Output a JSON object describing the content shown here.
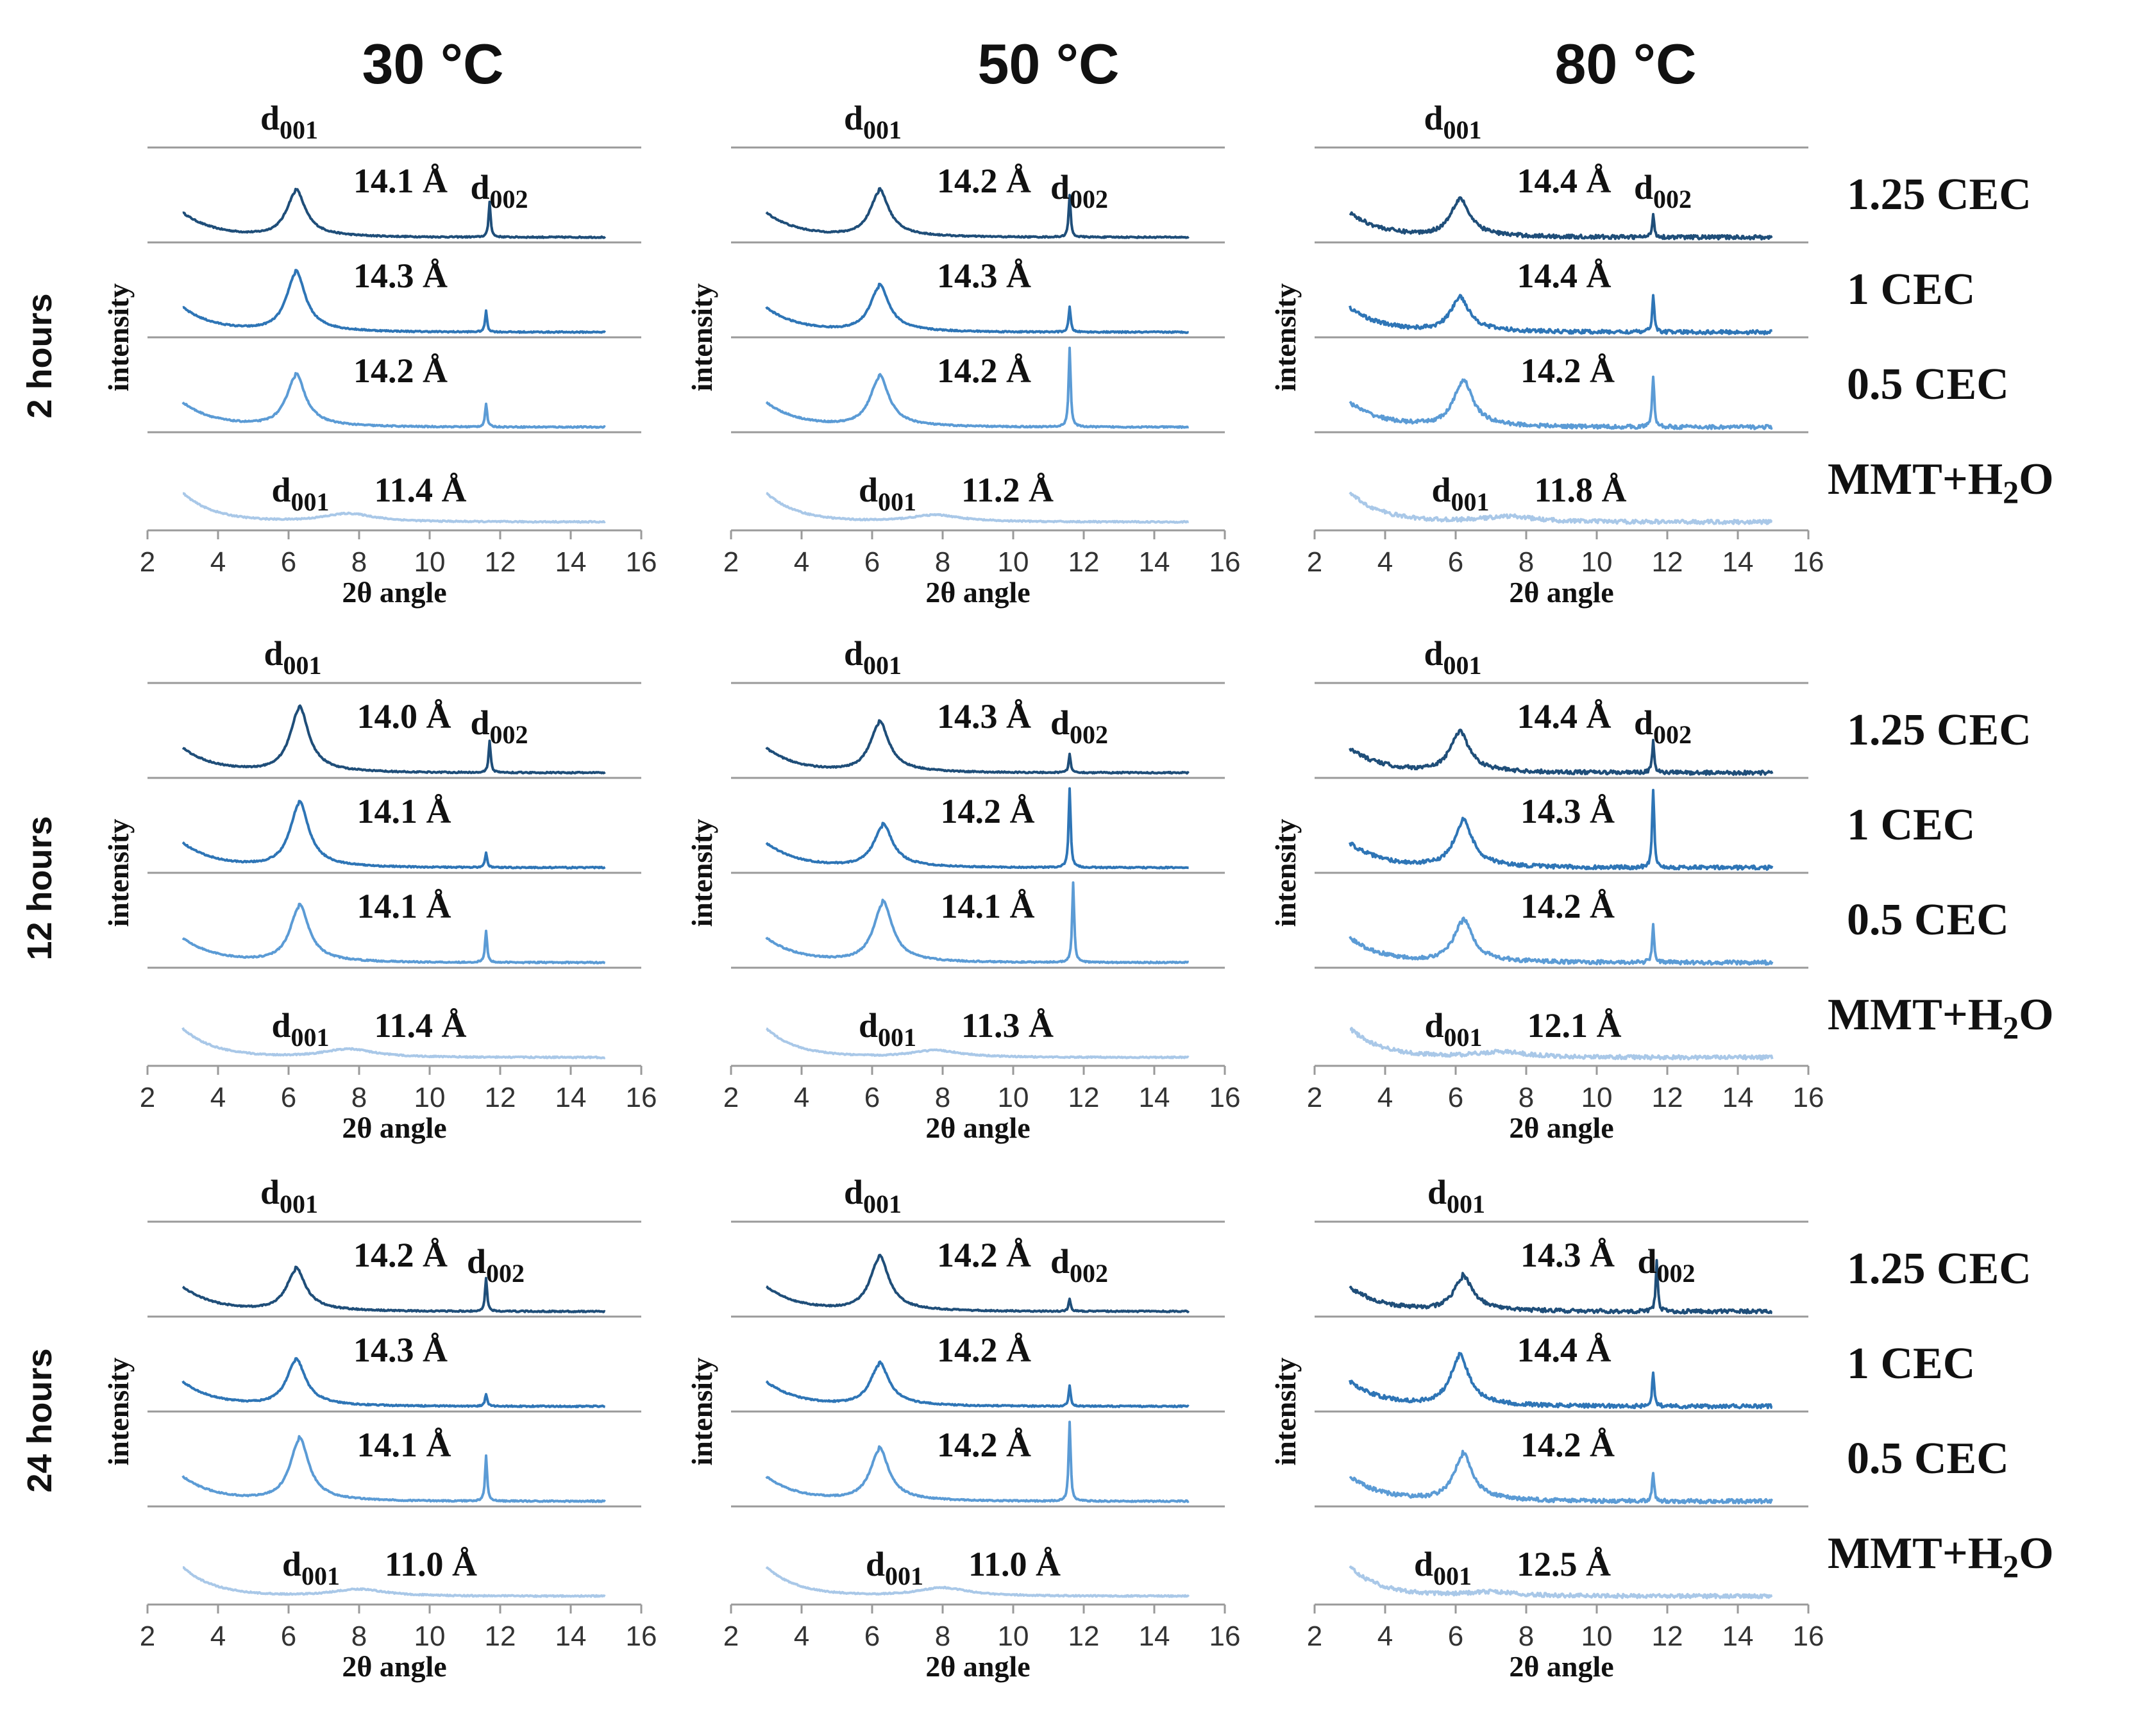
{
  "figure": {
    "temperatures": [
      "30 °C",
      "50 °C",
      "80 °C"
    ],
    "times": [
      "2 hours",
      "12 hours",
      "24 hours"
    ],
    "condition_labels": [
      {
        "main": "1.25 CEC",
        "sub": ""
      },
      {
        "main": "1 CEC",
        "sub": ""
      },
      {
        "main": "0.5 CEC",
        "sub": ""
      },
      {
        "main": "MMT+H",
        "sub": "2",
        "tail": "O"
      }
    ],
    "y_label": "intensity",
    "x_label": "2θ angle",
    "x_ticks": [
      "2",
      "4",
      "6",
      "8",
      "10",
      "12",
      "14",
      "16"
    ],
    "peak_labels": {
      "d001": {
        "main": "d",
        "sub": "001"
      },
      "d002": {
        "main": "d",
        "sub": "002"
      }
    },
    "colors": {
      "1.25 CEC": "#1f4e79",
      "1 CEC": "#2e75b6",
      "0.5 CEC": "#5b9bd5",
      "MMT+H2O": "#a9c8e8",
      "baseline": "#9a9a9a"
    }
  },
  "chart_data": [
    {
      "type": "line",
      "time": "2 hours",
      "temperature": "30 °C",
      "xlabel": "2θ angle",
      "ylabel": "intensity",
      "xlim": [
        2,
        16
      ],
      "series": [
        {
          "name": "1.25 CEC",
          "d001_peak_2theta": 6.2,
          "d_spacing": "14.1 Å",
          "peak_height": 0.55,
          "d002_peak_2theta": 11.7,
          "d002_height": 0.42
        },
        {
          "name": "1 CEC",
          "d001_peak_2theta": 6.2,
          "d_spacing": "14.3 Å",
          "peak_height": 0.72,
          "d002_peak_2theta": 11.6,
          "d002_height": 0.25
        },
        {
          "name": "0.5 CEC",
          "d001_peak_2theta": 6.2,
          "d_spacing": "14.2 Å",
          "peak_height": 0.62,
          "d002_peak_2theta": 11.6,
          "d002_height": 0.28
        },
        {
          "name": "MMT+H2O",
          "d001_peak_2theta": 7.7,
          "d_spacing": "11.4 Å",
          "peak_height": 0.12
        }
      ]
    },
    {
      "type": "line",
      "time": "2 hours",
      "temperature": "50 °C",
      "xlabel": "2θ angle",
      "ylabel": "intensity",
      "xlim": [
        2,
        16
      ],
      "series": [
        {
          "name": "1.25 CEC",
          "d001_peak_2theta": 6.2,
          "d_spacing": "14.2 Å",
          "peak_height": 0.55,
          "d002_peak_2theta": 11.6,
          "d002_height": 0.5
        },
        {
          "name": "1 CEC",
          "d001_peak_2theta": 6.2,
          "d_spacing": "14.3 Å",
          "peak_height": 0.55,
          "d002_peak_2theta": 11.6,
          "d002_height": 0.3
        },
        {
          "name": "0.5 CEC",
          "d001_peak_2theta": 6.2,
          "d_spacing": "14.2 Å",
          "peak_height": 0.6,
          "d002_peak_2theta": 11.6,
          "d002_height": 0.95
        },
        {
          "name": "MMT+H2O",
          "d001_peak_2theta": 7.8,
          "d_spacing": "11.2 Å",
          "peak_height": 0.1
        }
      ]
    },
    {
      "type": "line",
      "time": "2 hours",
      "temperature": "80 °C",
      "xlabel": "2θ angle",
      "ylabel": "intensity",
      "xlim": [
        2,
        16
      ],
      "series": [
        {
          "name": "1.25 CEC",
          "d001_peak_2theta": 6.1,
          "d_spacing": "14.4 Å",
          "peak_height": 0.45,
          "d002_peak_2theta": 11.6,
          "d002_height": 0.27
        },
        {
          "name": "1 CEC",
          "d001_peak_2theta": 6.1,
          "d_spacing": "14.4 Å",
          "peak_height": 0.4,
          "d002_peak_2theta": 11.6,
          "d002_height": 0.45
        },
        {
          "name": "0.5 CEC",
          "d001_peak_2theta": 6.2,
          "d_spacing": "14.2 Å",
          "peak_height": 0.55,
          "d002_peak_2theta": 11.6,
          "d002_height": 0.62
        },
        {
          "name": "MMT+H2O",
          "d001_peak_2theta": 7.5,
          "d_spacing": "11.8 Å",
          "peak_height": 0.08
        }
      ]
    },
    {
      "type": "line",
      "time": "12 hours",
      "temperature": "30 °C",
      "xlabel": "2θ angle",
      "ylabel": "intensity",
      "xlim": [
        2,
        16
      ],
      "series": [
        {
          "name": "1.25 CEC",
          "d001_peak_2theta": 6.3,
          "d_spacing": "14.0 Å",
          "peak_height": 0.78,
          "d002_peak_2theta": 11.7,
          "d002_height": 0.38
        },
        {
          "name": "1 CEC",
          "d001_peak_2theta": 6.3,
          "d_spacing": "14.1 Å",
          "peak_height": 0.78,
          "d002_peak_2theta": 11.6,
          "d002_height": 0.18
        },
        {
          "name": "0.5 CEC",
          "d001_peak_2theta": 6.3,
          "d_spacing": "14.1 Å",
          "peak_height": 0.68,
          "d002_peak_2theta": 11.6,
          "d002_height": 0.38
        },
        {
          "name": "MMT+H2O",
          "d001_peak_2theta": 7.7,
          "d_spacing": "11.4 Å",
          "peak_height": 0.12
        }
      ]
    },
    {
      "type": "line",
      "time": "12 hours",
      "temperature": "50 °C",
      "xlabel": "2θ angle",
      "ylabel": "intensity",
      "xlim": [
        2,
        16
      ],
      "series": [
        {
          "name": "1.25 CEC",
          "d001_peak_2theta": 6.2,
          "d_spacing": "14.3 Å",
          "peak_height": 0.6,
          "d002_peak_2theta": 11.6,
          "d002_height": 0.22
        },
        {
          "name": "1 CEC",
          "d001_peak_2theta": 6.3,
          "d_spacing": "14.2 Å",
          "peak_height": 0.5,
          "d002_peak_2theta": 11.6,
          "d002_height": 0.95
        },
        {
          "name": "0.5 CEC",
          "d001_peak_2theta": 6.3,
          "d_spacing": "14.1 Å",
          "peak_height": 0.72,
          "d002_peak_2theta": 11.7,
          "d002_height": 0.95
        },
        {
          "name": "MMT+H2O",
          "d001_peak_2theta": 7.8,
          "d_spacing": "11.3 Å",
          "peak_height": 0.1
        }
      ]
    },
    {
      "type": "line",
      "time": "12 hours",
      "temperature": "80 °C",
      "xlabel": "2θ angle",
      "ylabel": "intensity",
      "xlim": [
        2,
        16
      ],
      "series": [
        {
          "name": "1.25 CEC",
          "d001_peak_2theta": 6.1,
          "d_spacing": "14.4 Å",
          "peak_height": 0.48,
          "d002_peak_2theta": 11.6,
          "d002_height": 0.38
        },
        {
          "name": "1 CEC",
          "d001_peak_2theta": 6.2,
          "d_spacing": "14.3 Å",
          "peak_height": 0.55,
          "d002_peak_2theta": 11.6,
          "d002_height": 0.95
        },
        {
          "name": "0.5 CEC",
          "d001_peak_2theta": 6.2,
          "d_spacing": "14.2 Å",
          "peak_height": 0.5,
          "d002_peak_2theta": 11.6,
          "d002_height": 0.45
        },
        {
          "name": "MMT+H2O",
          "d001_peak_2theta": 7.3,
          "d_spacing": "12.1 Å",
          "peak_height": 0.08
        }
      ]
    },
    {
      "type": "line",
      "time": "24 hours",
      "temperature": "30 °C",
      "xlabel": "2θ angle",
      "ylabel": "intensity",
      "xlim": [
        2,
        16
      ],
      "series": [
        {
          "name": "1.25 CEC",
          "d001_peak_2theta": 6.2,
          "d_spacing": "14.2 Å",
          "peak_height": 0.5,
          "d002_peak_2theta": 11.6,
          "d002_height": 0.4
        },
        {
          "name": "1 CEC",
          "d001_peak_2theta": 6.2,
          "d_spacing": "14.3 Å",
          "peak_height": 0.55,
          "d002_peak_2theta": 11.6,
          "d002_height": 0.15
        },
        {
          "name": "0.5 CEC",
          "d001_peak_2theta": 6.3,
          "d_spacing": "14.1 Å",
          "peak_height": 0.75,
          "d002_peak_2theta": 11.6,
          "d002_height": 0.55
        },
        {
          "name": "MMT+H2O",
          "d001_peak_2theta": 8.0,
          "d_spacing": "11.0 Å",
          "peak_height": 0.1
        }
      ]
    },
    {
      "type": "line",
      "time": "24 hours",
      "temperature": "50 °C",
      "xlabel": "2θ angle",
      "ylabel": "intensity",
      "xlim": [
        2,
        16
      ],
      "series": [
        {
          "name": "1.25 CEC",
          "d001_peak_2theta": 6.2,
          "d_spacing": "14.2 Å",
          "peak_height": 0.65,
          "d002_peak_2theta": 11.6,
          "d002_height": 0.15
        },
        {
          "name": "1 CEC",
          "d001_peak_2theta": 6.2,
          "d_spacing": "14.2 Å",
          "peak_height": 0.5,
          "d002_peak_2theta": 11.6,
          "d002_height": 0.25
        },
        {
          "name": "0.5 CEC",
          "d001_peak_2theta": 6.2,
          "d_spacing": "14.2 Å",
          "peak_height": 0.62,
          "d002_peak_2theta": 11.6,
          "d002_height": 0.95
        },
        {
          "name": "MMT+H2O",
          "d001_peak_2theta": 8.0,
          "d_spacing": "11.0 Å",
          "peak_height": 0.12
        }
      ]
    },
    {
      "type": "line",
      "time": "24 hours",
      "temperature": "80 °C",
      "xlabel": "2θ angle",
      "ylabel": "intensity",
      "xlim": [
        2,
        16
      ],
      "series": [
        {
          "name": "1.25 CEC",
          "d001_peak_2theta": 6.2,
          "d_spacing": "14.3 Å",
          "peak_height": 0.4,
          "d002_peak_2theta": 11.7,
          "d002_height": 0.6
        },
        {
          "name": "1 CEC",
          "d001_peak_2theta": 6.1,
          "d_spacing": "14.4 Å",
          "peak_height": 0.6,
          "d002_peak_2theta": 11.6,
          "d002_height": 0.42
        },
        {
          "name": "0.5 CEC",
          "d001_peak_2theta": 6.2,
          "d_spacing": "14.2 Å",
          "peak_height": 0.55,
          "d002_peak_2theta": 11.6,
          "d002_height": 0.35
        },
        {
          "name": "MMT+H2O",
          "d001_peak_2theta": 7.0,
          "d_spacing": "12.5 Å",
          "peak_height": 0.06
        }
      ]
    }
  ]
}
